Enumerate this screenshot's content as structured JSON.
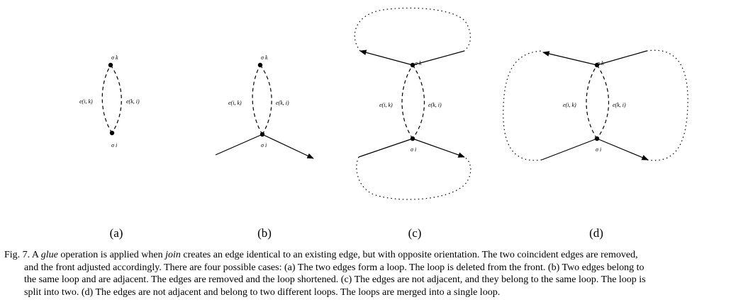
{
  "labels": {
    "sigma_k": "σ k",
    "sigma_i": "σ i",
    "edge_ik": "e(i, k)",
    "edge_ki": "e(k, i)"
  },
  "subfigures": [
    "(a)",
    "(b)",
    "(c)",
    "(d)"
  ],
  "caption": {
    "prefix": "Fig. 7.  A ",
    "glue": "glue",
    "mid1": " operation is applied when ",
    "join": "join",
    "line1_rest": " creates an edge identical to an existing edge, but with opposite orientation.  The two coincident edges are removed,",
    "line2": "and the front adjusted accordingly.  There are four possible cases: (a) The two edges form a loop. The loop is deleted from the front. (b) Two edges belong to",
    "line3": "the same loop and are adjacent.  The edges are removed and the loop shortened. (c) The edges are not adjacent, and they belong to the same loop.  The loop is",
    "line4": "split into two. (d) The edges are not adjacent and belong to two different loops. The loops are merged into a single loop."
  }
}
